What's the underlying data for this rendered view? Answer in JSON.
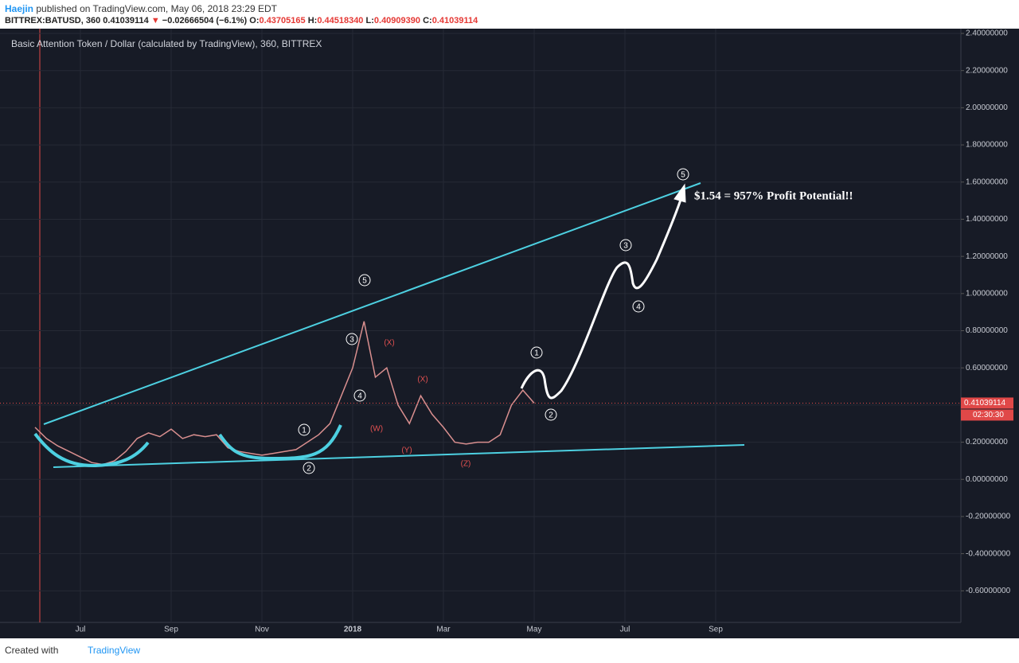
{
  "header": {
    "author": "Haejin",
    "published": "published on TradingView.com, May 06, 2018 23:29 EDT",
    "symbol": "BITTREX:BATUSD, 360",
    "price": "0.41039114",
    "arrow": "▼",
    "change": "−0.02666504 (−6.1%)",
    "open_label": "O:",
    "open": "0.43705165",
    "high_label": "H:",
    "high": "0.44518340",
    "low_label": "L:",
    "low": "0.40909390",
    "close_label": "C:",
    "close": "0.41039114"
  },
  "footer": {
    "created": "Created with",
    "brand": "TradingView"
  },
  "chart_data": {
    "type": "line",
    "title": "Basic Attention Token / Dollar (calculated by TradingView), 360, BITTREX",
    "categories": [
      null,
      null,
      null,
      null,
      "Jul",
      null,
      null,
      null,
      null,
      null,
      null,
      null,
      "Sep",
      null,
      null,
      null,
      null,
      null,
      null,
      null,
      "Nov",
      null,
      null,
      null,
      null,
      null,
      null,
      null,
      "2018",
      null,
      null,
      null,
      null,
      null,
      null,
      null,
      "Mar",
      null,
      null,
      null,
      null,
      null,
      null,
      null,
      "May",
      null,
      null,
      null,
      null,
      null,
      null,
      null,
      "Jul",
      null,
      null,
      null,
      null,
      null,
      null,
      null,
      "Sep",
      null,
      null,
      null,
      null,
      null,
      null,
      null,
      null,
      null,
      null,
      null,
      null,
      null,
      null,
      null,
      null,
      null,
      null,
      null,
      null,
      null
    ],
    "series": [
      {
        "name": "BATUSD",
        "color": "#d98f8f",
        "values": [
          0.28,
          0.22,
          0.18,
          0.15,
          0.12,
          0.09,
          0.08,
          0.1,
          0.15,
          0.22,
          0.25,
          0.23,
          0.27,
          0.22,
          0.24,
          0.23,
          0.24,
          0.17,
          0.15,
          0.14,
          0.13,
          0.14,
          0.15,
          0.16,
          0.2,
          0.24,
          0.3,
          0.45,
          0.6,
          0.85,
          0.55,
          0.6,
          0.4,
          0.3,
          0.45,
          0.35,
          0.28,
          0.2,
          0.19,
          0.2,
          0.2,
          0.24,
          0.4,
          0.48,
          0.41039114,
          null,
          null,
          null,
          null,
          null,
          null,
          null,
          null,
          null,
          null,
          null,
          null,
          null,
          null,
          null,
          null,
          null,
          null,
          null,
          null,
          null,
          null,
          null,
          null,
          null,
          null,
          null,
          null,
          null,
          null,
          null,
          null,
          null,
          null,
          null,
          null,
          null
        ]
      }
    ],
    "ylim": [
      -0.77,
      2.43
    ],
    "yticks": [
      {
        "value": -0.6,
        "label": "-0.60000000"
      },
      {
        "value": -0.4,
        "label": "-0.40000000"
      },
      {
        "value": -0.2,
        "label": "-0.20000000"
      },
      {
        "value": 0,
        "label": "0.00000000"
      },
      {
        "value": 0.2,
        "label": "0.20000000"
      },
      {
        "value": 0.4,
        "label": "0.40000000"
      },
      {
        "value": 0.6,
        "label": "0.60000000"
      },
      {
        "value": 0.8,
        "label": "0.80000000"
      },
      {
        "value": 1.0,
        "label": "1.00000000"
      },
      {
        "value": 1.2,
        "label": "1.20000000"
      },
      {
        "value": 1.4,
        "label": "1.40000000"
      },
      {
        "value": 1.6,
        "label": "1.60000000"
      },
      {
        "value": 1.8,
        "label": "1.80000000"
      },
      {
        "value": 2.0,
        "label": "2.00000000"
      },
      {
        "value": 2.2,
        "label": "2.20000000"
      },
      {
        "value": 2.4,
        "label": "2.40000000"
      }
    ],
    "grid": true,
    "last_price": {
      "value": 0.41039114,
      "label": "0.41039114"
    },
    "countdown": "02:30:30",
    "wave_labels": [
      "5",
      "3",
      "4",
      "1",
      "2",
      "1",
      "2",
      "3",
      "4",
      "5"
    ],
    "correction_labels": [
      "(X)",
      "(X)",
      "(W)",
      "(Y)",
      "(Z)"
    ],
    "annotation": "$1.54 = 957% Profit Potential!!"
  }
}
